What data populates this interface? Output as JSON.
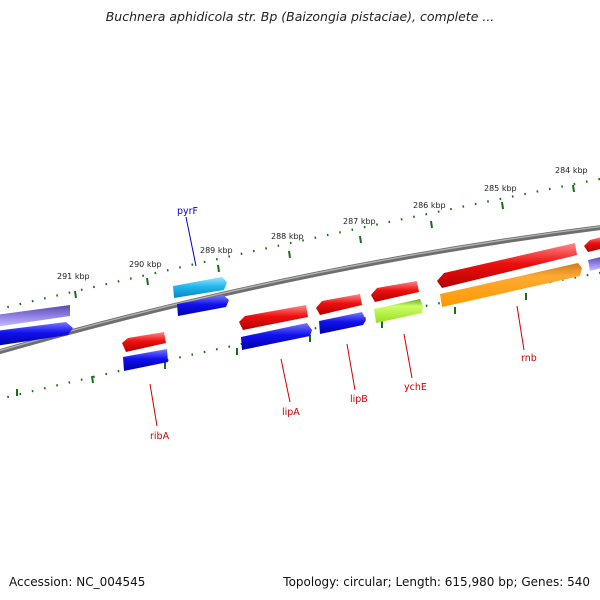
{
  "title": "Buchnera aphidicola str. Bp (Baizongia pistaciae), complete ...",
  "footer": {
    "accession": "Accession: NC_004545",
    "summary": "Topology: circular; Length: 615,980 bp; Genes: 540"
  },
  "scale_labels": [
    "291 kbp",
    "290 kbp",
    "289 kbp",
    "288 kbp",
    "287 kbp",
    "286 kbp",
    "285 kbp",
    "284 kbp"
  ],
  "gene_labels": [
    {
      "text": "pyrF",
      "color": "#0000cc"
    },
    {
      "text": "ribA",
      "color": "#cc0000"
    },
    {
      "text": "lipA",
      "color": "#cc0000"
    },
    {
      "text": "lipB",
      "color": "#cc0000"
    },
    {
      "text": "ychE",
      "color": "#cc0000"
    },
    {
      "text": "rnb",
      "color": "#cc0000"
    }
  ],
  "colors": {
    "backbone": "#808080",
    "scale_ticks": "#1a6e1a",
    "red_feature": "#ee1111",
    "blue_feature": "#1111ee",
    "cyan_feature": "#22bbee",
    "lime_feature": "#aaee22",
    "orange_feature": "#ff9911",
    "purple_feature": "#6a5acd"
  }
}
